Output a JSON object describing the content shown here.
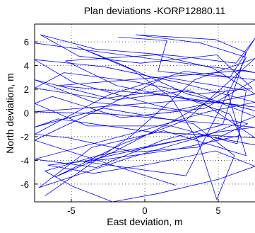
{
  "chart_data": {
    "type": "line",
    "title": "Plan deviations -KORP12880.11",
    "xlabel": "East deviation, m",
    "ylabel": "North deviation, m",
    "xlim": [
      -7.5,
      7.5
    ],
    "ylim": [
      -7.5,
      7.5
    ],
    "x_ticks": [
      -5,
      0,
      5
    ],
    "y_ticks": [
      6,
      4,
      2,
      0,
      -2,
      -4,
      -6
    ],
    "grid": true,
    "line_color": "#0000ff",
    "series": [
      {
        "points": [
          [
            -7.5,
            5.9
          ],
          [
            7.5,
            3.4
          ],
          [
            6.8,
            3.6
          ],
          [
            -6.0,
            2.3
          ],
          [
            0.5,
            1.6
          ],
          [
            7.5,
            0.5
          ],
          [
            3.2,
            1.1
          ],
          [
            -7.5,
            0.1
          ],
          [
            -2.2,
            -0.1
          ],
          [
            7.5,
            -1.2
          ],
          [
            5.0,
            -1.6
          ],
          [
            -4.2,
            -4.1
          ],
          [
            2.8,
            -5.3
          ],
          [
            6.9,
            4.7
          ],
          [
            3.8,
            5.9
          ],
          [
            -0.6,
            6.6
          ],
          [
            4.8,
            6.2
          ],
          [
            6.9,
            5.1
          ],
          [
            5.3,
            -1.0
          ],
          [
            1.2,
            -2.3
          ],
          [
            -3.3,
            -4.6
          ],
          [
            -7.5,
            -3.9
          ],
          [
            -0.2,
            -1.5
          ],
          [
            4.3,
            0.1
          ],
          [
            7.5,
            0.9
          ],
          [
            2.6,
            2.5
          ],
          [
            -2.8,
            3.9
          ],
          [
            -7.5,
            4.5
          ],
          [
            -4.9,
            2.6
          ],
          [
            0.9,
            0.6
          ],
          [
            7.0,
            -0.9
          ],
          [
            3.6,
            -2.9
          ],
          [
            -0.7,
            -3.3
          ],
          [
            -5.2,
            -2.1
          ],
          [
            -7.5,
            -1.8
          ],
          [
            -2.5,
            1.5
          ],
          [
            2.7,
            3.5
          ],
          [
            7.5,
            2.8
          ],
          [
            4.1,
            0.4
          ],
          [
            -1.6,
            -0.4
          ],
          [
            -6.3,
            1.4
          ],
          [
            -7.5,
            0.8
          ],
          [
            -3.9,
            -1.1
          ],
          [
            1.8,
            -1.1
          ],
          [
            6.3,
            -2.6
          ],
          [
            6.9,
            1.9
          ],
          [
            1.4,
            3.0
          ],
          [
            -4.1,
            -0.3
          ],
          [
            -7.5,
            -2.3
          ],
          [
            -1.2,
            -4.8
          ],
          [
            2.1,
            -6.1
          ]
        ]
      },
      {
        "points": [
          [
            -6.8,
            -7.0
          ],
          [
            -0.9,
            -1.9
          ],
          [
            3.4,
            2.8
          ],
          [
            7.5,
            4.6
          ],
          [
            2.8,
            -0.6
          ],
          [
            -1.5,
            -2.6
          ],
          [
            -6.1,
            -5.4
          ],
          [
            -2.3,
            -3.4
          ],
          [
            1.6,
            -0.9
          ],
          [
            5.6,
            1.9
          ],
          [
            6.9,
            -3.6
          ],
          [
            1.3,
            -1.5
          ],
          [
            -3.6,
            -2.9
          ],
          [
            -7.2,
            -6.3
          ],
          [
            -1.1,
            -3.8
          ],
          [
            4.4,
            -1.8
          ],
          [
            7.5,
            -0.3
          ],
          [
            3.0,
            1.9
          ],
          [
            -2.0,
            1.1
          ],
          [
            -7.5,
            2.8
          ],
          [
            -3.5,
            0.9
          ],
          [
            2.0,
            0.2
          ],
          [
            7.5,
            1.6
          ],
          [
            4.6,
            3.8
          ],
          [
            0.8,
            4.9
          ],
          [
            -5.4,
            4.4
          ],
          [
            -1.9,
            2.3
          ],
          [
            3.9,
            0.9
          ],
          [
            7.5,
            -2.1
          ],
          [
            0.4,
            -1.6
          ],
          [
            -5.9,
            -0.5
          ],
          [
            -7.5,
            -1.2
          ],
          [
            -2.8,
            0.4
          ],
          [
            3.3,
            -0.9
          ],
          [
            6.1,
            -3.6
          ],
          [
            4.9,
            -7.3
          ],
          [
            3.6,
            -2.3
          ],
          [
            1.8,
            1.3
          ],
          [
            -0.8,
            3.6
          ],
          [
            -4.6,
            5.6
          ],
          [
            -1.8,
            4.2
          ],
          [
            2.9,
            1.6
          ],
          [
            7.5,
            0.2
          ]
        ]
      },
      {
        "points": [
          [
            -1.8,
            6.4
          ],
          [
            1.5,
            6.1
          ],
          [
            0.9,
            3.5
          ],
          [
            5.8,
            3.0
          ],
          [
            7.5,
            6.3
          ],
          [
            6.2,
            4.2
          ],
          [
            2.3,
            4.8
          ],
          [
            -3.4,
            5.4
          ],
          [
            -7.1,
            6.6
          ],
          [
            -4.5,
            4.8
          ],
          [
            -0.3,
            4.2
          ],
          [
            4.9,
            4.9
          ],
          [
            7.3,
            2.1
          ],
          [
            3.7,
            1.6
          ],
          [
            -1.0,
            2.7
          ],
          [
            -5.5,
            3.4
          ],
          [
            -7.5,
            2.1
          ],
          [
            -2.9,
            1.2
          ],
          [
            1.3,
            1.9
          ],
          [
            5.8,
            -0.1
          ],
          [
            6.5,
            -1.9
          ],
          [
            2.0,
            -3.1
          ],
          [
            -2.6,
            -3.9
          ],
          [
            -6.6,
            -4.4
          ],
          [
            -3.5,
            -5.1
          ],
          [
            0.4,
            -4.3
          ],
          [
            4.8,
            -3.2
          ],
          [
            7.5,
            -4.5
          ],
          [
            5.0,
            -5.6
          ],
          [
            0.9,
            -6.8
          ],
          [
            -2.2,
            -7.5
          ],
          [
            -4.9,
            -6.2
          ],
          [
            -6.8,
            -4.9
          ],
          [
            -3.2,
            -3.6
          ],
          [
            -0.1,
            -2.9
          ],
          [
            4.0,
            -1.9
          ],
          [
            7.5,
            -2.7
          ]
        ]
      }
    ]
  }
}
